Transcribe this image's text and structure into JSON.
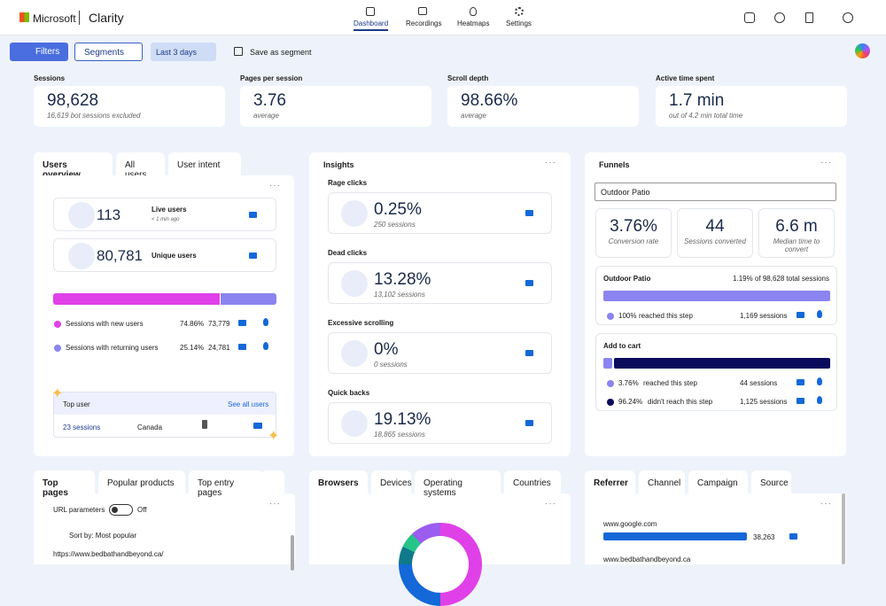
{
  "header": {
    "brand": "Microsoft",
    "product": "Clarity",
    "nav": [
      "Dashboard",
      "Recordings",
      "Heatmaps",
      "Settings"
    ]
  },
  "toolbar": {
    "filters": "Filters",
    "segments": "Segments",
    "date": "Last 3 days",
    "save": "Save as segment"
  },
  "metrics": [
    {
      "label": "Sessions",
      "value": "98,628",
      "sub": "16,619 bot sessions excluded"
    },
    {
      "label": "Pages per session",
      "value": "3.76",
      "sub": "average"
    },
    {
      "label": "Scroll depth",
      "value": "98.66%",
      "sub": "average"
    },
    {
      "label": "Active time spent",
      "value": "1.7 min",
      "sub": "out of 4.2 min total time"
    }
  ],
  "users": {
    "tabs": [
      "Users overview",
      "All users",
      "User intent"
    ],
    "live": {
      "value": "113",
      "label": "Live users",
      "sub": "< 1 min ago"
    },
    "unique": {
      "value": "80,781",
      "label": "Unique users"
    },
    "rows": [
      {
        "label": "Sessions with new users",
        "value": 74.86,
        "value_label": "74.86%",
        "count": "73,779",
        "color": "#e040e8"
      },
      {
        "label": "Sessions with returning users",
        "value": 25.14,
        "value_label": "25.14%",
        "count": "24,781",
        "color": "#8b84f0"
      }
    ],
    "top_user": {
      "title": "Top user",
      "link": "See all users",
      "sessions": "23 sessions",
      "country": "Canada"
    }
  },
  "insights": {
    "title": "Insights",
    "items": [
      {
        "label": "Rage clicks",
        "value": "0.25%",
        "sub": "250 sessions"
      },
      {
        "label": "Dead clicks",
        "value": "13.28%",
        "sub": "13,102 sessions"
      },
      {
        "label": "Excessive scrolling",
        "value": "0%",
        "sub": "0 sessions"
      },
      {
        "label": "Quick backs",
        "value": "19.13%",
        "sub": "18,865 sessions"
      }
    ]
  },
  "funnels": {
    "title": "Funnels",
    "select": "Outdoor Patio",
    "stats": [
      {
        "value": "3.76%",
        "label": "Conversion rate"
      },
      {
        "value": "44",
        "label": "Sessions converted"
      },
      {
        "value": "6.6 m",
        "label": "Median time to convert"
      }
    ],
    "steps": [
      {
        "name": "Outdoor Patio",
        "share": "1.19% of 98,628 total sessions",
        "rows": [
          {
            "value": 100,
            "value_label": "100%",
            "text": "reached this step",
            "count": "1,169 sessions",
            "color": "#8b84f0"
          }
        ]
      },
      {
        "name": "Add to cart",
        "rows": [
          {
            "value": 3.76,
            "value_label": "3.76%",
            "text": "reached this step",
            "count": "44 sessions",
            "color": "#8b84f0"
          },
          {
            "value": 96.24,
            "value_label": "96.24%",
            "text": "didn't reach this step",
            "count": "1,125 sessions",
            "color": "#0b0b5e"
          }
        ]
      }
    ]
  },
  "pages": {
    "tabs": [
      "Top pages",
      "Popular products",
      "Top entry pages"
    ],
    "url_params": "URL parameters",
    "toggle": "Off",
    "sort": "Sort by: Most popular",
    "url": "https://www.bedbathandbeyond.ca/"
  },
  "browsers": {
    "tabs": [
      "Browsers",
      "Devices",
      "Operating systems",
      "Countries"
    ]
  },
  "referrer": {
    "tabs": [
      "Referrer",
      "Channel",
      "Campaign",
      "Source"
    ],
    "rows": [
      {
        "name": "www.google.com",
        "count": "38,263"
      },
      {
        "name": "www.bedbathandbeyond.ca"
      }
    ]
  }
}
